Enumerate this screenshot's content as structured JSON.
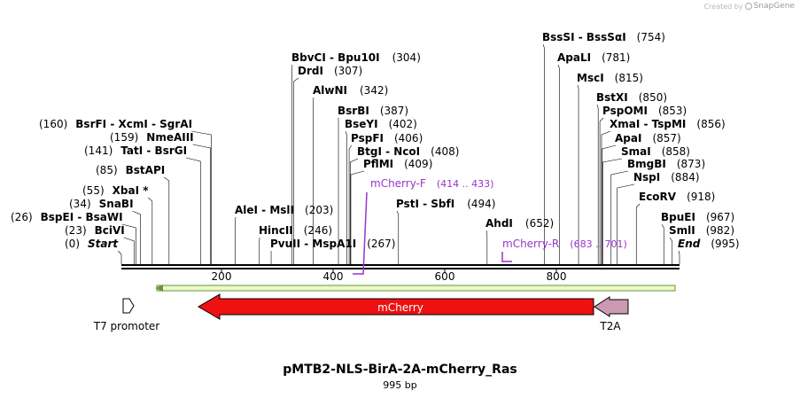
{
  "credit": {
    "created_by": "Created by",
    "brand": "SnapGene"
  },
  "title": "pMTB2-NLS-BirA-2A-mCherry_Ras",
  "length_label": "995 bp",
  "sequence_length": 995,
  "ruler_ticks": [
    "200",
    "400",
    "600",
    "800"
  ],
  "ruler_tick_values": [
    200,
    400,
    600,
    800
  ],
  "colors": {
    "primer": "#9933cc",
    "mcherry": "#ee1111",
    "t2a": "#cc99b3",
    "orf_line": "#669933",
    "orf_fill": "#eef7cc"
  },
  "sites": [
    {
      "name": "BssSI  -  BssSαI",
      "pos": "(754)",
      "bp": 754
    },
    {
      "name": "ApaLI",
      "pos": "(781)",
      "bp": 781
    },
    {
      "name": "MscI",
      "pos": "(815)",
      "bp": 815
    },
    {
      "name": "BstXI",
      "pos": "(850)",
      "bp": 850
    },
    {
      "name": "PspOMI",
      "pos": "(853)",
      "bp": 853
    },
    {
      "name": "XmaI  -  TspMI",
      "pos": "(856)",
      "bp": 856
    },
    {
      "name": "ApaI",
      "pos": "(857)",
      "bp": 857
    },
    {
      "name": "SmaI",
      "pos": "(858)",
      "bp": 858
    },
    {
      "name": "BmgBI",
      "pos": "(873)",
      "bp": 873
    },
    {
      "name": "NspI",
      "pos": "(884)",
      "bp": 884
    },
    {
      "name": "EcoRV",
      "pos": "(918)",
      "bp": 918
    },
    {
      "name": "BpuEI",
      "pos": "(967)",
      "bp": 967
    },
    {
      "name": "SmlI",
      "pos": "(982)",
      "bp": 982
    },
    {
      "name": "End",
      "pos": "(995)",
      "bp": 995
    },
    {
      "name": "BbvCI  -  Bpu10I",
      "pos": "(304)",
      "bp": 304
    },
    {
      "name": "DrdI",
      "pos": "(307)",
      "bp": 307
    },
    {
      "name": "AlwNI",
      "pos": "(342)",
      "bp": 342
    },
    {
      "name": "BsrBI",
      "pos": "(387)",
      "bp": 387
    },
    {
      "name": "BseYI",
      "pos": "(402)",
      "bp": 402
    },
    {
      "name": "PspFI",
      "pos": "(406)",
      "bp": 406
    },
    {
      "name": "BtgI  -  NcoI",
      "pos": "(408)",
      "bp": 408
    },
    {
      "name": "PflMI",
      "pos": "(409)",
      "bp": 409
    },
    {
      "name": "PstI  -  SbfI",
      "pos": "(494)",
      "bp": 494
    },
    {
      "name": "AhdI",
      "pos": "(652)",
      "bp": 652
    },
    {
      "name": "AleI  -  MslI",
      "pos": "(203)",
      "bp": 203
    },
    {
      "name": "HincII",
      "pos": "(246)",
      "bp": 246
    },
    {
      "name": "PvuII  -  MspA1I",
      "pos": "(267)",
      "bp": 267
    },
    {
      "name": "BsrFI  -  XcmI  -  SgrAI",
      "pos": "(160)",
      "bp": 160
    },
    {
      "name": "NmeAIII",
      "pos": "(159)",
      "bp": 159
    },
    {
      "name": "TatI  -  BsrGI",
      "pos": "(141)",
      "bp": 141
    },
    {
      "name": "BstAPI",
      "pos": "(85)",
      "bp": 85
    },
    {
      "name": "XbaI *",
      "pos": "(55)",
      "bp": 55
    },
    {
      "name": "SnaBI",
      "pos": "(34)",
      "bp": 34
    },
    {
      "name": "BspEI  -  BsaWI",
      "pos": "(26)",
      "bp": 26
    },
    {
      "name": "BciVI",
      "pos": "(23)",
      "bp": 23
    },
    {
      "name": "Start",
      "pos": "(0)",
      "bp": 0
    }
  ],
  "primers": [
    {
      "name": "mCherry-F",
      "range": "(414 .. 433)",
      "start": 414,
      "end": 433,
      "direction": "forward"
    },
    {
      "name": "mCherry-R",
      "range": "(683 .. 701)",
      "start": 683,
      "end": 701,
      "direction": "reverse"
    }
  ],
  "features": [
    {
      "name": "T7 promoter",
      "start": 0,
      "end": 19,
      "direction": "forward"
    },
    {
      "name": "mCherry",
      "start": 139,
      "end": 849,
      "direction": "reverse"
    },
    {
      "name": "T2A",
      "start": 849,
      "end": 903,
      "direction": "reverse"
    }
  ]
}
